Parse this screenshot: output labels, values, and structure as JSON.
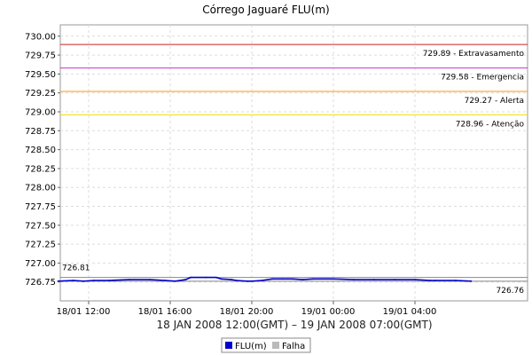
{
  "chart_data": {
    "type": "line",
    "title": "Córrego Jaguaré FLU(m)",
    "xlabel": "18 JAN 2008 12:00(GMT) – 19 JAN 2008 07:00(GMT)",
    "ylabel": "",
    "x_range_hours": [
      0,
      19
    ],
    "ylim": [
      726.5,
      730.15
    ],
    "yticks": [
      726.75,
      727.0,
      727.25,
      727.5,
      727.75,
      728.0,
      728.25,
      728.5,
      728.75,
      729.0,
      729.25,
      729.5,
      729.75,
      730.0
    ],
    "xticks": [
      {
        "hour": 0,
        "label": "18/01 12:00"
      },
      {
        "hour": 4,
        "label": "18/01 16:00"
      },
      {
        "hour": 8,
        "label": "18/01 20:00"
      },
      {
        "hour": 12,
        "label": "19/01 00:00"
      },
      {
        "hour": 16,
        "label": "19/01 04:00"
      }
    ],
    "grid": true,
    "legend_position": "bottom",
    "series": [
      {
        "name": "FLU(m)",
        "color": "#0000cc",
        "points": [
          [
            -1.5,
            726.76
          ],
          [
            -0.75,
            726.77
          ],
          [
            -0.25,
            726.76
          ],
          [
            0.25,
            726.77
          ],
          [
            1.0,
            726.77
          ],
          [
            2.0,
            726.78
          ],
          [
            3.0,
            726.78
          ],
          [
            3.75,
            726.77
          ],
          [
            4.25,
            726.76
          ],
          [
            4.75,
            726.78
          ],
          [
            5.0,
            726.81
          ],
          [
            5.75,
            726.81
          ],
          [
            6.25,
            726.81
          ],
          [
            6.5,
            726.79
          ],
          [
            7.0,
            726.78
          ],
          [
            7.25,
            726.77
          ],
          [
            7.75,
            726.76
          ],
          [
            8.0,
            726.76
          ],
          [
            8.5,
            726.77
          ],
          [
            9.0,
            726.79
          ],
          [
            9.5,
            726.79
          ],
          [
            10.0,
            726.79
          ],
          [
            10.5,
            726.78
          ],
          [
            11.0,
            726.79
          ],
          [
            12.0,
            726.79
          ],
          [
            13.0,
            726.78
          ],
          [
            14.0,
            726.78
          ],
          [
            15.0,
            726.78
          ],
          [
            16.0,
            726.78
          ],
          [
            16.75,
            726.77
          ],
          [
            17.0,
            726.77
          ],
          [
            18.0,
            726.77
          ],
          [
            18.75,
            726.76
          ]
        ]
      },
      {
        "name": "Falha",
        "color": "#bbbbbb",
        "points": []
      }
    ],
    "reference_lines": [
      {
        "value": 729.89,
        "label": "729.89 - Extravasamento",
        "color": "#cc2222"
      },
      {
        "value": 729.58,
        "label": "729.58 - Emergencia",
        "color": "#cc33cc"
      },
      {
        "value": 729.27,
        "label": "729.27 - Alerta",
        "color": "#ff9900"
      },
      {
        "value": 728.96,
        "label": "728.96 - Atenção",
        "color": "#eedd00"
      },
      {
        "value": 726.81,
        "label": "726.81",
        "color": "#888888"
      },
      {
        "value": 726.76,
        "label": "726.76",
        "color": "#888888"
      }
    ]
  }
}
